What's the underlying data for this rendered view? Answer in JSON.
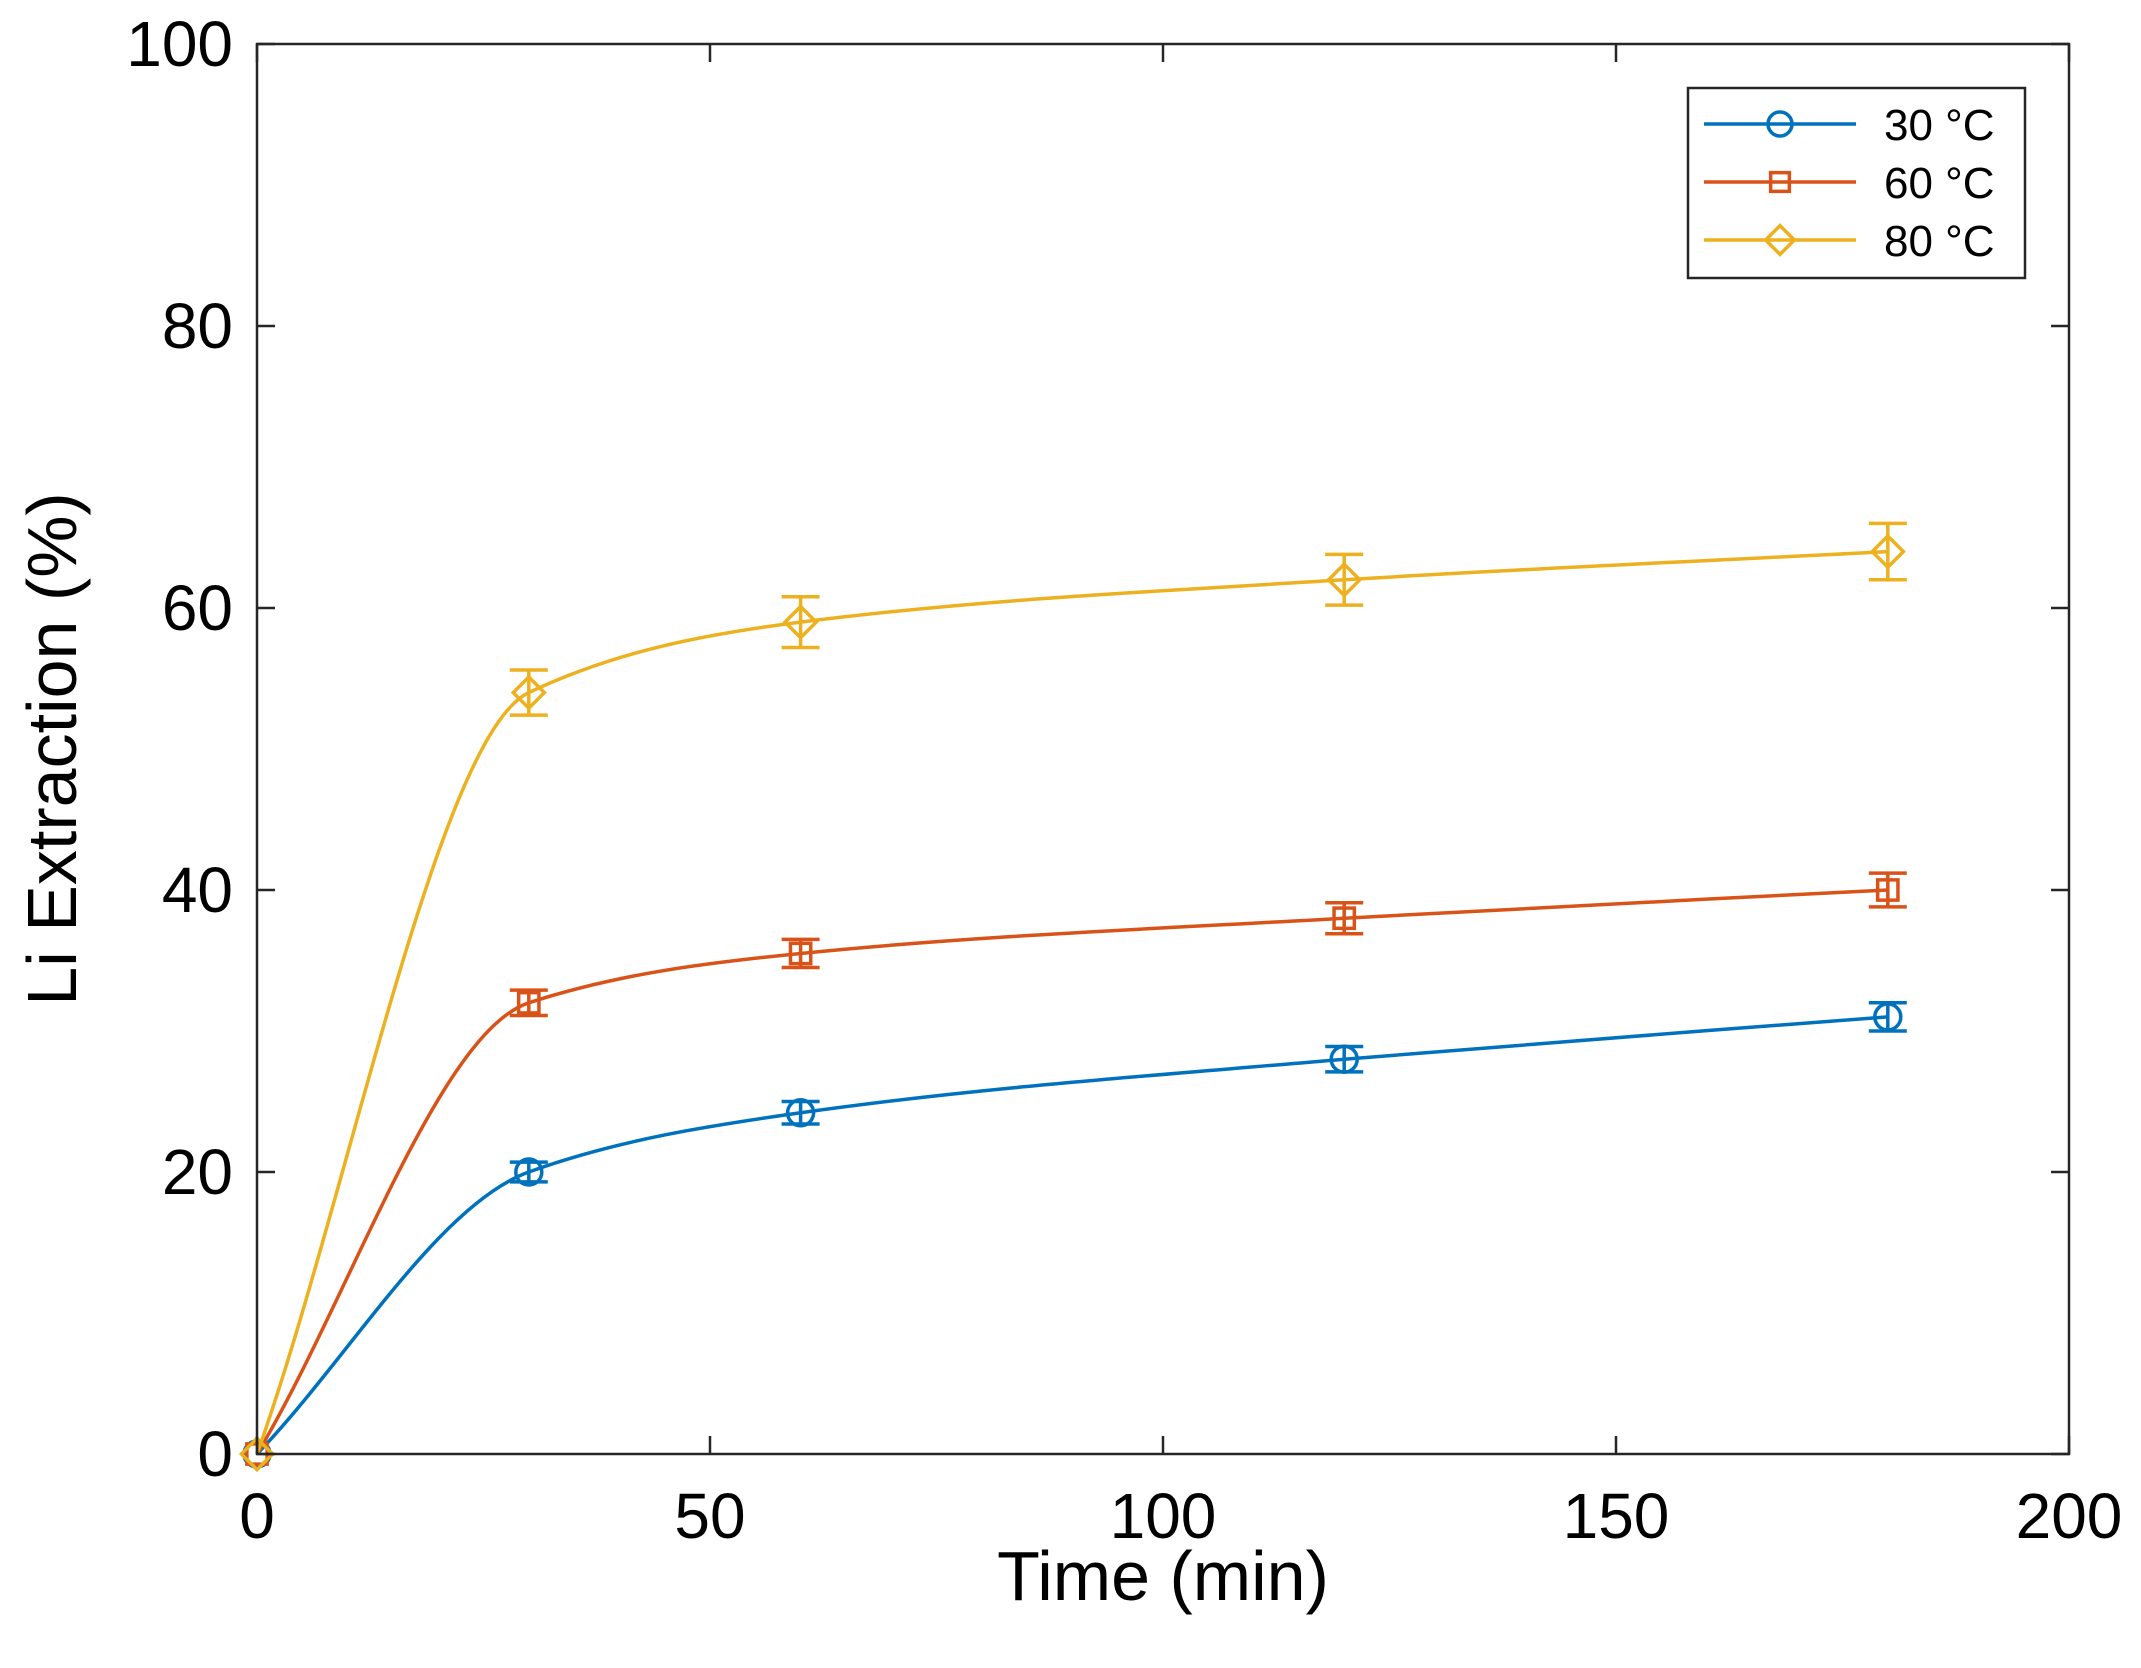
{
  "chart_data": {
    "type": "line",
    "title": "",
    "xlabel": "Time (min)",
    "ylabel": "Li Extraction (%)",
    "xlim": [
      0,
      200
    ],
    "ylim": [
      0,
      100
    ],
    "xticks": [
      0,
      50,
      100,
      150,
      200
    ],
    "yticks": [
      0,
      20,
      40,
      60,
      80,
      100
    ],
    "grid": false,
    "legend_position": "top-right",
    "x": [
      0,
      30,
      60,
      120,
      180
    ],
    "series": [
      {
        "name": "30 °C",
        "color": "#0072BD",
        "marker": "circle",
        "values": [
          0,
          20,
          24.2,
          28,
          31
        ],
        "errors": [
          0,
          0.7,
          0.8,
          0.9,
          1.0
        ]
      },
      {
        "name": "60 °C",
        "color": "#D95319",
        "marker": "square",
        "values": [
          0,
          32,
          35.5,
          38,
          40
        ],
        "errors": [
          0,
          0.9,
          1.0,
          1.1,
          1.2
        ]
      },
      {
        "name": "80 °C",
        "color": "#EDB120",
        "marker": "diamond",
        "values": [
          0,
          54,
          59,
          62,
          64
        ],
        "errors": [
          0,
          1.6,
          1.8,
          1.8,
          2.0
        ]
      }
    ]
  }
}
